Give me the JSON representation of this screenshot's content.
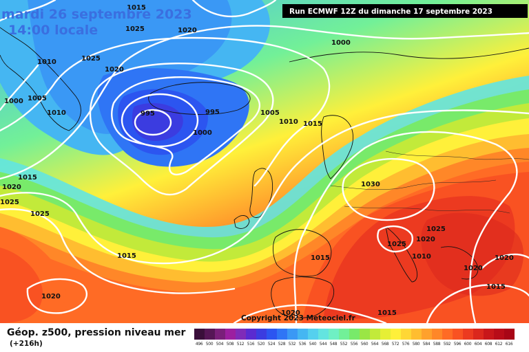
{
  "title": {
    "date": "mardi 26 septembre 2023",
    "time": "14:00 locale"
  },
  "run_info": "Run ECMWF 12Z du dimanche 17 septembre 2023",
  "copyright": "Copyright 2023 Meteociel.fr",
  "legend": {
    "title": "Géop. z500, pression niveau mer",
    "lead": "(+216h)",
    "ticks": [
      "496",
      "500",
      "504",
      "508",
      "512",
      "516",
      "520",
      "524",
      "528",
      "532",
      "536",
      "540",
      "544",
      "548",
      "552",
      "556",
      "560",
      "564",
      "568",
      "572",
      "576",
      "580",
      "584",
      "588",
      "592",
      "596",
      "600",
      "604",
      "608",
      "612",
      "616"
    ],
    "colors": [
      "#3a0f3a",
      "#561656",
      "#7a1f7a",
      "#9c1fa0",
      "#7f2bb8",
      "#5a2bd0",
      "#3b3ce0",
      "#2c55f0",
      "#2f75f5",
      "#3a98f5",
      "#45b6f2",
      "#55d0ee",
      "#63e4e0",
      "#6ff0c4",
      "#72f098",
      "#78ea6a",
      "#9ae645",
      "#c2ea3a",
      "#e6ef35",
      "#fff03a",
      "#ffd735",
      "#ffbd30",
      "#ffa12c",
      "#ff8728",
      "#ff6b25",
      "#f95222",
      "#ec3a20",
      "#db271d",
      "#c8161a",
      "#b80c18",
      "#a80616"
    ]
  },
  "pressure_labels": [
    "1015",
    "1025",
    "1020",
    "1025",
    "1020",
    "1000",
    "1010",
    "1005",
    "1000",
    "1010",
    "995",
    "995",
    "1000",
    "1005",
    "1010",
    "1015",
    "1015",
    "1020",
    "1025",
    "1030",
    "1025",
    "1025",
    "1025",
    "1020",
    "1015",
    "1015",
    "1010",
    "1020",
    "1020",
    "1015"
  ]
}
